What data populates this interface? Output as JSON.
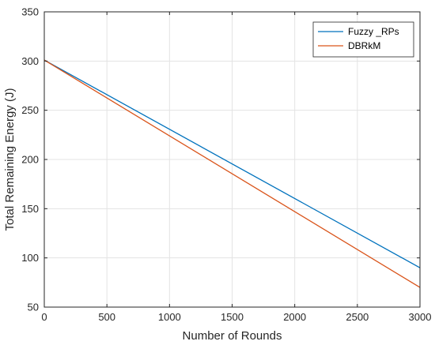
{
  "chart_data": {
    "type": "line",
    "title": "",
    "xlabel": "Number of Rounds",
    "ylabel": "Total Remaining Energy (J)",
    "xlim": [
      0,
      3000
    ],
    "ylim": [
      50,
      350
    ],
    "xticks": [
      0,
      500,
      1000,
      1500,
      2000,
      2500,
      3000
    ],
    "yticks": [
      50,
      100,
      150,
      200,
      250,
      300,
      350
    ],
    "grid": true,
    "legend_position": "top-right",
    "series": [
      {
        "name": "Fuzzy _RPs",
        "color": "#0072BD",
        "x": [
          0,
          3000
        ],
        "y": [
          301,
          90
        ]
      },
      {
        "name": "DBRkM",
        "color": "#D95319",
        "x": [
          0,
          3000
        ],
        "y": [
          301,
          70
        ]
      }
    ]
  }
}
